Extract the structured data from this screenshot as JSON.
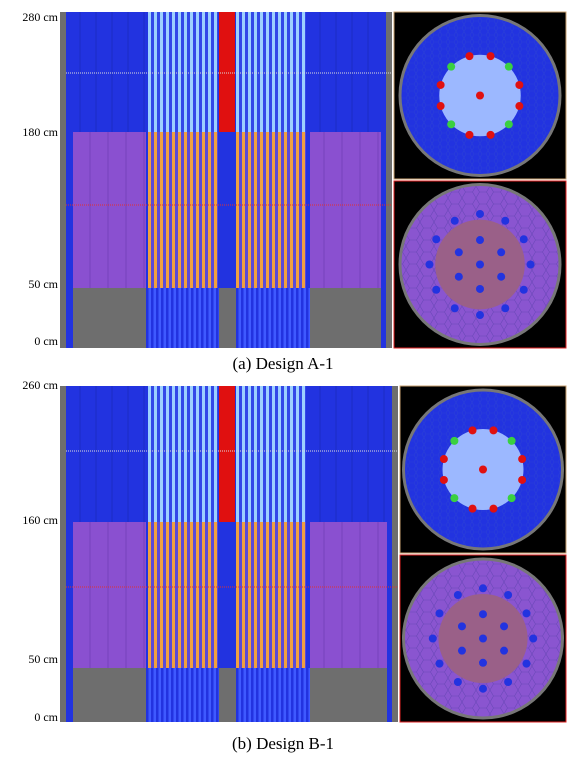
{
  "panels": [
    {
      "height_labels": [
        "280 cm",
        "180 cm",
        "50 cm",
        "0 cm"
      ],
      "caption": "(a) Design A-1"
    },
    {
      "height_labels": [
        "260 cm",
        "160 cm",
        "50 cm",
        "0 cm"
      ],
      "caption": "(b) Design B-1"
    }
  ]
}
